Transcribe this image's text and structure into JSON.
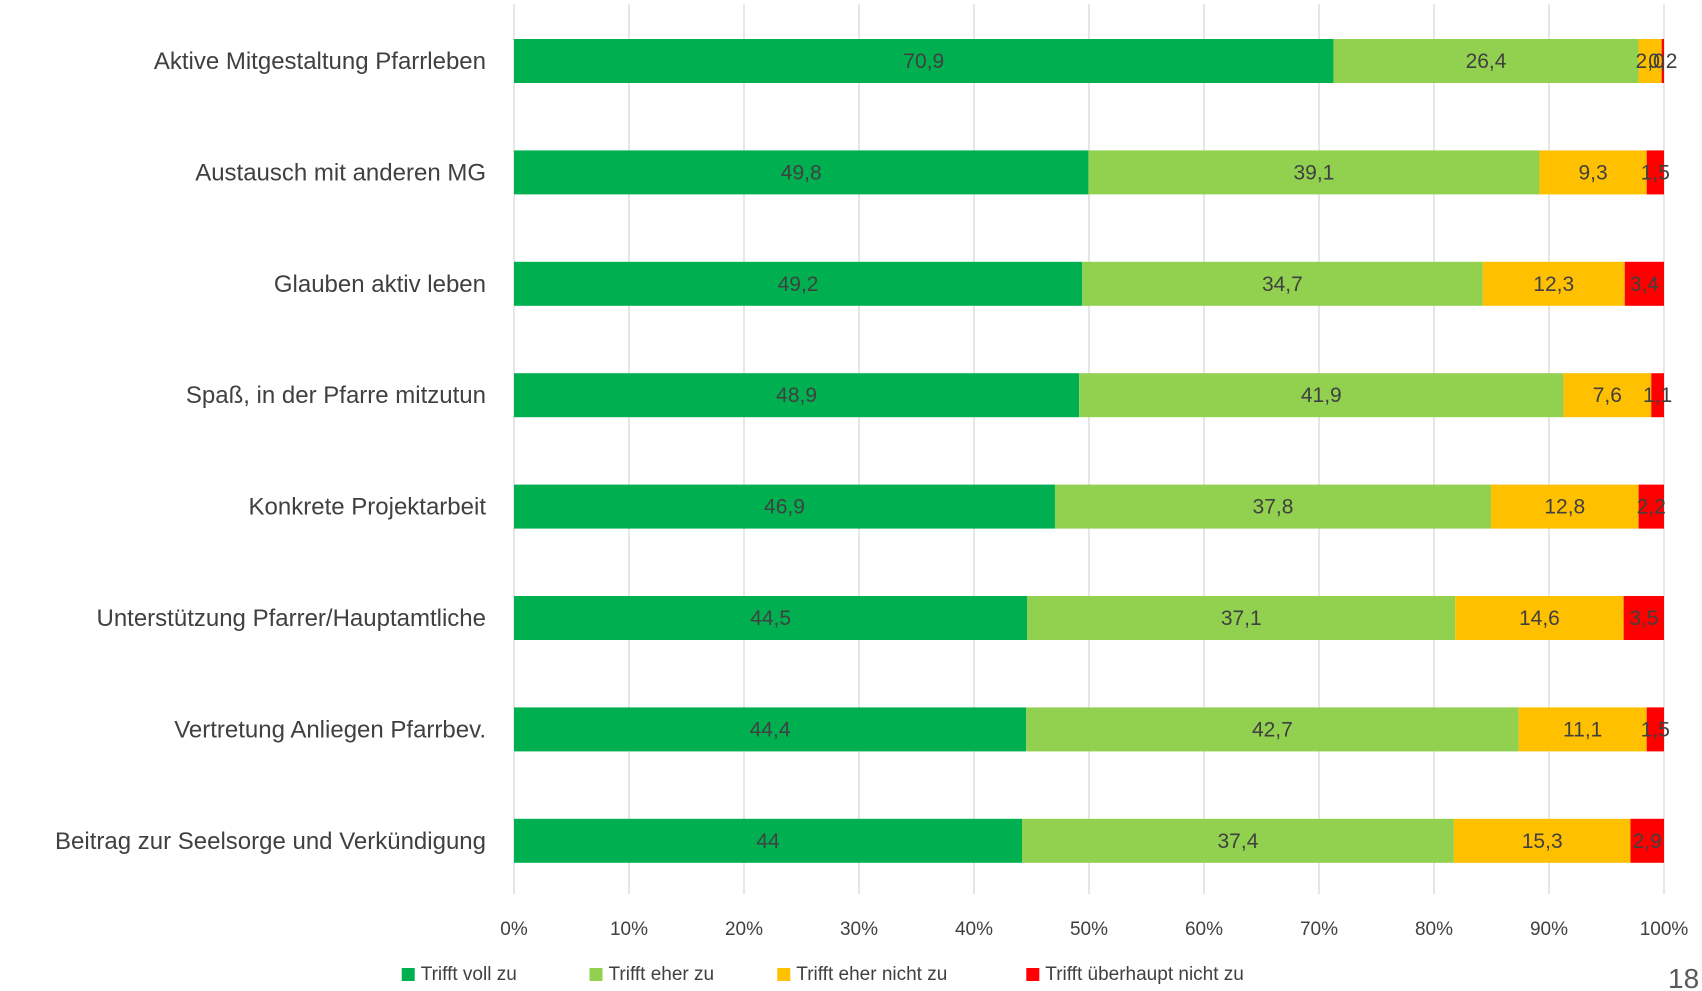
{
  "page_number": "18",
  "colors": {
    "trifft_voll_zu": "#00b050",
    "trifft_eher_zu": "#92d050",
    "trifft_eher_nicht_zu": "#ffc000",
    "trifft_ueberhaupt_nicht_zu": "#ff0000",
    "text": "#404040",
    "grid": "#d9d9d9"
  },
  "chart_data": {
    "type": "bar",
    "orientation": "horizontal",
    "stacked": "percent",
    "categories": [
      "Aktive Mitgestaltung Pfarrleben",
      "Austausch mit anderen MG",
      "Glauben aktiv leben",
      "Spaß, in der Pfarre mitzutun",
      "Konkrete Projektarbeit",
      "Unterstützung Pfarrer/Hauptamtliche",
      "Vertretung Anliegen Pfarrbev.",
      "Beitrag zur Seelsorge und Verkündigung"
    ],
    "series": [
      {
        "name": "Trifft voll zu",
        "color": "#00b050",
        "values": [
          70.9,
          49.8,
          49.2,
          48.9,
          46.9,
          44.5,
          44.4,
          44
        ],
        "labels": [
          "70,9",
          "49,8",
          "49,2",
          "48,9",
          "46,9",
          "44,5",
          "44,4",
          "44"
        ]
      },
      {
        "name": "Trifft eher zu",
        "color": "#92d050",
        "values": [
          26.4,
          39.1,
          34.7,
          41.9,
          37.8,
          37.1,
          42.7,
          37.4
        ],
        "labels": [
          "26,4",
          "39,1",
          "34,7",
          "41,9",
          "37,8",
          "37,1",
          "42,7",
          "37,4"
        ]
      },
      {
        "name": "Trifft eher nicht zu",
        "color": "#ffc000",
        "values": [
          2.0,
          9.3,
          12.3,
          7.6,
          12.8,
          14.6,
          11.1,
          15.3
        ],
        "labels": [
          "2,0",
          "9,3",
          "12,3",
          "7,6",
          "12,8",
          "14,6",
          "11,1",
          "15,3"
        ]
      },
      {
        "name": "Trifft überhaupt nicht zu",
        "color": "#ff0000",
        "values": [
          0.2,
          1.5,
          3.4,
          1.1,
          2.2,
          3.5,
          1.5,
          2.9
        ],
        "labels": [
          "0,2",
          "1,5",
          "3,4",
          "1,1",
          "2,2",
          "3,5",
          "1,5",
          "2,9"
        ]
      }
    ],
    "x_ticks": [
      "0%",
      "10%",
      "20%",
      "30%",
      "40%",
      "50%",
      "60%",
      "70%",
      "80%",
      "90%",
      "100%"
    ],
    "xlim": [
      0,
      100
    ],
    "grid": true,
    "legend": "bottom",
    "title": "",
    "xlabel": "",
    "ylabel": ""
  }
}
